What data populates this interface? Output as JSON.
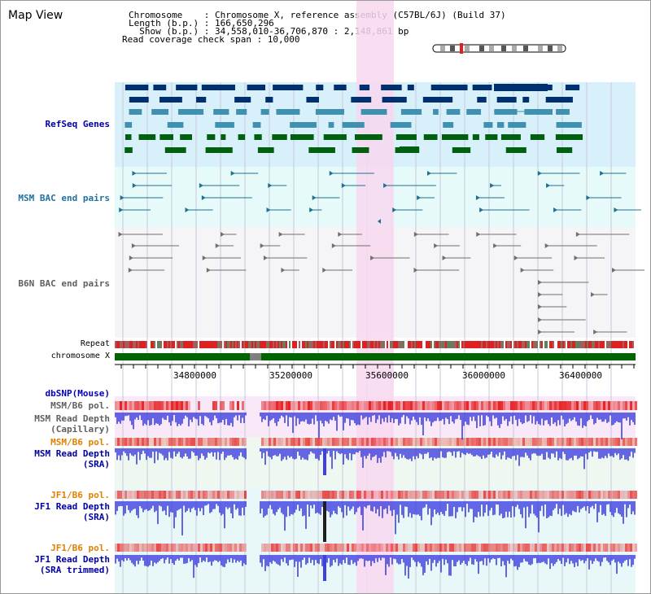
{
  "view": {
    "title": "Map View"
  },
  "info": {
    "chromosome": "Chromosome    : Chromosome X, reference assembly (C57BL/6J) (Build 37)",
    "length": "Length (b.p.) : 166,650,296",
    "show": "  Show (b.p.) : 34,558,010-36,706,870 : 2,148,861 bp",
    "coverage": "Read coverage check span : 10,000"
  },
  "tracks": {
    "refseq": "RefSeq Genes",
    "msm_bac": "MSM BAC end pairs",
    "b6n_bac": "B6N BAC end pairs",
    "repeat": "Repeat",
    "chromosome": "chromosome X",
    "dbsnp": "dbSNP(Mouse)",
    "msm_b6_pol_cap": "MSM/B6 pol.",
    "msm_depth_cap_1": "MSM Read Depth",
    "msm_depth_cap_2": "(Capillary)",
    "msm_b6_pol_sra": "MSM/B6 pol.",
    "msm_depth_sra_1": "MSM Read Depth",
    "msm_depth_sra_2": "(SRA)",
    "jf1_b6_pol": "JF1/B6 pol.",
    "jf1_depth_1": "JF1 Read Depth",
    "jf1_depth_2": "(SRA)",
    "jf1_b6_pol_trim": "JF1/B6 pol.",
    "jf1_trim_1": "JF1 Read Depth",
    "jf1_trim_2": "(SRA trimmed)"
  },
  "axis": {
    "ticks": [
      "34800000",
      "35200000",
      "35600000",
      "36000000",
      "36400000"
    ]
  },
  "colors": {
    "refseq_bg": "#d8f0fa",
    "msm_bg": "#e6fafa",
    "b6n_bg": "#f5f5f8",
    "highlight": "#f8d8f0",
    "gene_dark": "#003070",
    "gene_mid": "#4090b0",
    "gene_green": "#006010",
    "msm_bac": "#207090",
    "b6n_bac": "#707070",
    "chrom_bar": "#006400",
    "depth_blue": "#4040e0",
    "label_blue": "#0000a0",
    "label_orange": "#e08000"
  }
}
